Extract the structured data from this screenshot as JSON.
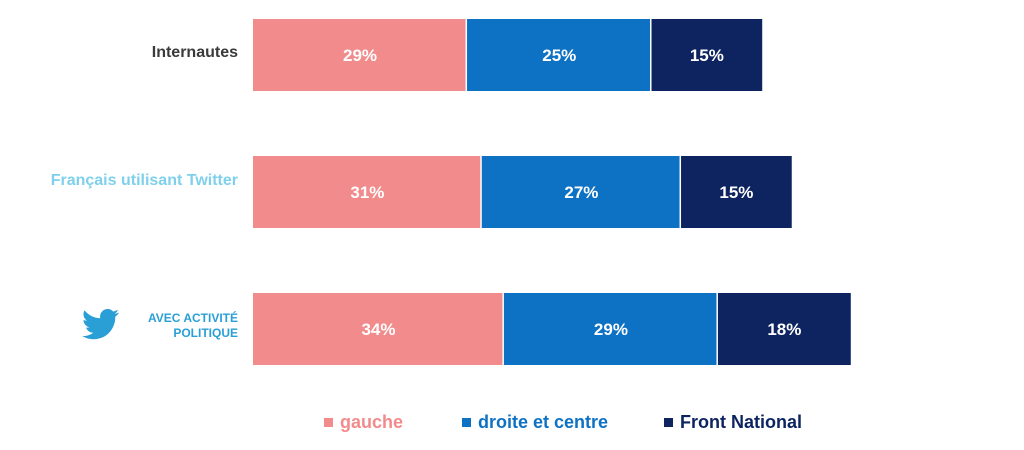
{
  "chart_data": {
    "type": "bar",
    "orientation": "horizontal",
    "stacked": true,
    "categories": [
      "Internautes",
      "Français utilisant Twitter",
      "Avec activité politique"
    ],
    "series": [
      {
        "name": "gauche",
        "values": [
          29,
          31,
          34
        ],
        "labels": [
          "29%",
          "31%",
          "34%"
        ],
        "color": "#f28b8b"
      },
      {
        "name": "droite et centre",
        "values": [
          25,
          27,
          29
        ],
        "labels": [
          "25%",
          "27%",
          "29%"
        ],
        "color": "#0d72c4"
      },
      {
        "name": "Front National",
        "values": [
          15,
          15,
          18
        ],
        "labels": [
          "15%",
          "15%",
          "18%"
        ],
        "color": "#0d2461"
      }
    ],
    "xlim": [
      0,
      100
    ],
    "grid": false,
    "legend_position": "bottom",
    "icons": {
      "category_2": "twitter-bird-icon"
    },
    "label_color": "#ffffff"
  }
}
